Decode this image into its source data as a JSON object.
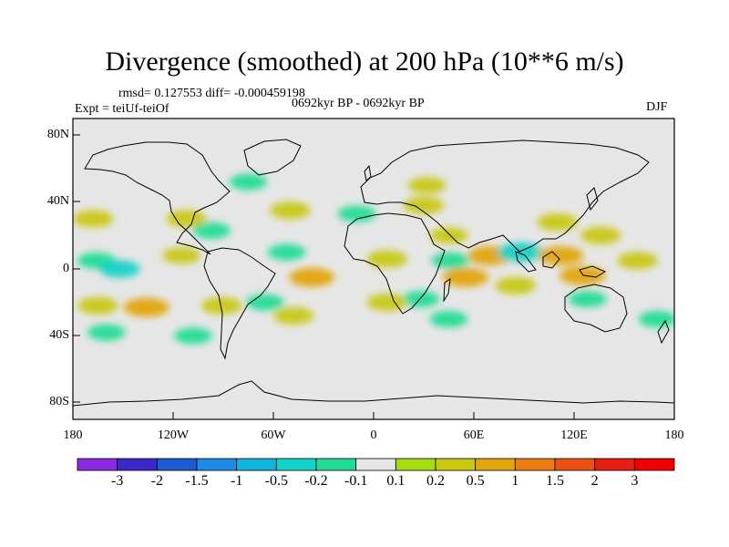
{
  "title": "Divergence (smoothed) at 200 hPa (10**6 m/s)",
  "subtitle": {
    "stats": "rmsd= 0.127553 diff= -0.000459198",
    "experiment": "Expt = teiUf-teiOf",
    "period": "0692kyr BP - 0692kyr BP",
    "season": "DJF"
  },
  "axes": {
    "lat_labels": [
      "80N",
      "40N",
      "0",
      "40S",
      "80S"
    ],
    "lon_labels": [
      "180",
      "120W",
      "60W",
      "0",
      "60E",
      "120E",
      "180"
    ]
  },
  "colorbar": {
    "labels": [
      "-3",
      "-2",
      "-1.5",
      "-1",
      "-0.5",
      "-0.2",
      "-0.1",
      "0.1",
      "0.2",
      "0.5",
      "1",
      "1.5",
      "2",
      "3"
    ],
    "colors": [
      "#8a2be2",
      "#3c28c8",
      "#1e5ad2",
      "#1e8ce6",
      "#10b4dc",
      "#14d2c8",
      "#22dc96",
      "#e6e6e6",
      "#a6dc14",
      "#c8c814",
      "#e1a50f",
      "#eb7d14",
      "#eb5014",
      "#e61e14",
      "#f00000"
    ]
  },
  "chart_data": {
    "type": "heatmap",
    "variable": "Divergence (smoothed) at 200 hPa",
    "units": "10**6 m/s",
    "experiment": "teiUf-teiOf",
    "season": "DJF",
    "lon_range": [
      -180,
      180
    ],
    "lat_range": [
      -90,
      90
    ],
    "levels": [
      -3,
      -2,
      -1.5,
      -1,
      -0.5,
      -0.2,
      -0.1,
      0.1,
      0.2,
      0.5,
      1,
      1.5,
      2,
      3
    ],
    "anomalies": [
      {
        "lon": -168,
        "lat": 30,
        "value": 0.3
      },
      {
        "lon": -166,
        "lat": 5,
        "value": -0.2
      },
      {
        "lon": -152,
        "lat": 0,
        "value": -0.3
      },
      {
        "lon": -165,
        "lat": -22,
        "value": 0.3
      },
      {
        "lon": -136,
        "lat": -23,
        "value": 0.5
      },
      {
        "lon": -160,
        "lat": -38,
        "value": -0.2
      },
      {
        "lon": -112,
        "lat": 30,
        "value": 0.3
      },
      {
        "lon": -97,
        "lat": 23,
        "value": -0.2
      },
      {
        "lon": -115,
        "lat": 8,
        "value": 0.2
      },
      {
        "lon": -108,
        "lat": -40,
        "value": -0.2
      },
      {
        "lon": -91,
        "lat": -22,
        "value": 0.3
      },
      {
        "lon": -75,
        "lat": 52,
        "value": -0.2
      },
      {
        "lon": -50,
        "lat": 35,
        "value": 0.3
      },
      {
        "lon": -52,
        "lat": 10,
        "value": -0.2
      },
      {
        "lon": -37,
        "lat": -5,
        "value": 0.5
      },
      {
        "lon": -65,
        "lat": -20,
        "value": -0.2
      },
      {
        "lon": -48,
        "lat": -28,
        "value": 0.3
      },
      {
        "lon": -10,
        "lat": 33,
        "value": -0.2
      },
      {
        "lon": 8,
        "lat": 6,
        "value": 0.3
      },
      {
        "lon": 28,
        "lat": -18,
        "value": -0.2
      },
      {
        "lon": 8,
        "lat": -20,
        "value": 0.3
      },
      {
        "lon": 30,
        "lat": 38,
        "value": 0.3
      },
      {
        "lon": 32,
        "lat": 50,
        "value": 0.2
      },
      {
        "lon": 45,
        "lat": 20,
        "value": 0.2
      },
      {
        "lon": 46,
        "lat": 5,
        "value": -0.2
      },
      {
        "lon": 55,
        "lat": -5,
        "value": 0.5
      },
      {
        "lon": 45,
        "lat": -30,
        "value": -0.2
      },
      {
        "lon": 70,
        "lat": 8,
        "value": 0.5
      },
      {
        "lon": 88,
        "lat": 10,
        "value": -0.5
      },
      {
        "lon": 85,
        "lat": -10,
        "value": 0.3
      },
      {
        "lon": 112,
        "lat": 8,
        "value": 0.5
      },
      {
        "lon": 125,
        "lat": -4,
        "value": 0.5
      },
      {
        "lon": 110,
        "lat": 28,
        "value": 0.3
      },
      {
        "lon": 136,
        "lat": 20,
        "value": 0.3
      },
      {
        "lon": 128,
        "lat": -18,
        "value": -0.2
      },
      {
        "lon": 158,
        "lat": 5,
        "value": 0.3
      },
      {
        "lon": 170,
        "lat": -30,
        "value": -0.2
      },
      {
        "lon": 160,
        "lat": 30,
        "value": -0.1
      }
    ]
  }
}
